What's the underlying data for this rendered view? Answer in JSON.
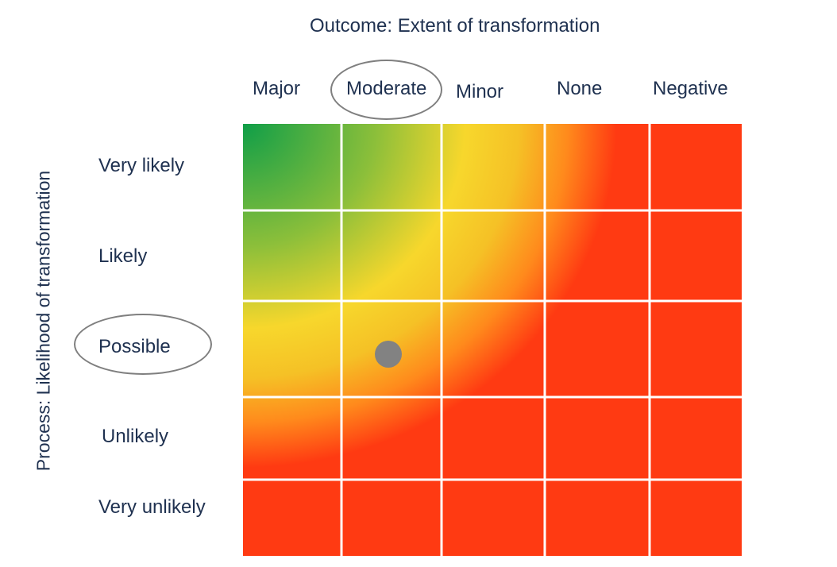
{
  "outcome_axis": {
    "title": "Outcome: Extent of transformation",
    "categories": [
      "Major",
      "Moderate",
      "Minor",
      "None",
      "Negative"
    ],
    "highlighted": "Moderate"
  },
  "process_axis": {
    "title": "Process: Likelihood of transformation",
    "categories": [
      "Very likely",
      "Likely",
      "Possible",
      "Unlikely",
      "Very unlikely"
    ],
    "highlighted": "Possible"
  },
  "marker": {
    "column": "Moderate",
    "row": "Possible",
    "color": "#828282"
  },
  "colors": {
    "green": "#0f9e48",
    "yellow": "#f7d72c",
    "orange": "#ff9a1f",
    "red": "#ff3a12",
    "text": "#1f3150"
  }
}
